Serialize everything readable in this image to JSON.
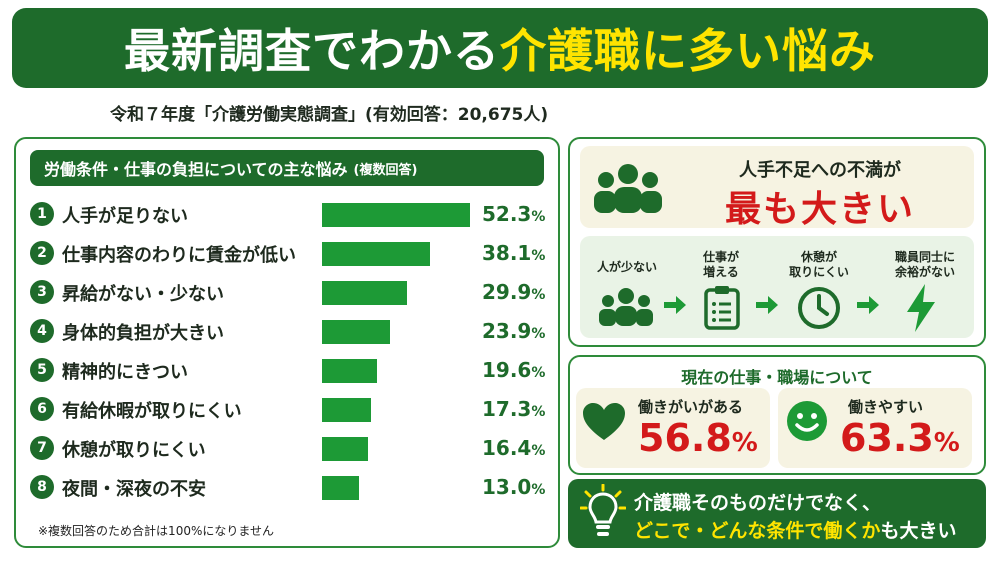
{
  "banner": {
    "title_white": "最新調査でわかる",
    "title_yellow": "介護職に多い悩み"
  },
  "subtitle": "令和７年度「介護労働実態調査」(有効回答：20,675人)",
  "left_panel": {
    "heading": "労働条件・仕事の負担についての主な悩み",
    "heading_note": "(複数回答)",
    "footnote": "※複数回答のため合計は100%になりません"
  },
  "chart_data": {
    "type": "bar",
    "orientation": "horizontal",
    "unit": "%",
    "categories": [
      "人手が足りない",
      "仕事内容のわりに賃金が低い",
      "昇給がない・少ない",
      "身体的負担が大きい",
      "精神的にきつい",
      "有給休暇が取りにくい",
      "休憩が取りにくい",
      "夜間・深夜の不安"
    ],
    "rank_labels": [
      "1",
      "2",
      "3",
      "4",
      "5",
      "6",
      "7",
      "8"
    ],
    "values": [
      52.3,
      38.1,
      29.9,
      23.9,
      19.6,
      17.3,
      16.4,
      13.0
    ],
    "value_labels": [
      "52.3",
      "38.1",
      "29.9",
      "23.9",
      "19.6",
      "17.3",
      "16.4",
      "13.0"
    ],
    "bar_color": "#1d9a36"
  },
  "top_right": {
    "line1": "人手不足への不満が",
    "line2": "最も大きい",
    "steps": [
      {
        "icon": "people-icon",
        "label": "人が少ない"
      },
      {
        "icon": "clipboard-icon",
        "label": "仕事が\n増える"
      },
      {
        "icon": "clock-icon",
        "label": "休憩が\n取りにくい"
      },
      {
        "icon": "lightning-icon",
        "label": "職員同士に\n余裕がない"
      }
    ]
  },
  "bottom_right": {
    "title": "現在の仕事・職場について",
    "cards": [
      {
        "icon": "heart-icon",
        "label": "働きがいがある",
        "value": "56.8",
        "unit": "%"
      },
      {
        "icon": "smile-icon",
        "label": "働きやすい",
        "value": "63.3",
        "unit": "%"
      }
    ]
  },
  "message": {
    "line1": "介護職そのものだけでなく、",
    "line2_highlight": "どこで・どんな条件で働くか",
    "line2_rest": "も大きい"
  },
  "colors": {
    "dark_green": "#1e6b2b",
    "bar_green": "#1d9a36",
    "accent_red": "#d31a1a",
    "accent_yellow": "#ffe400",
    "cream": "#f6f3e2"
  }
}
